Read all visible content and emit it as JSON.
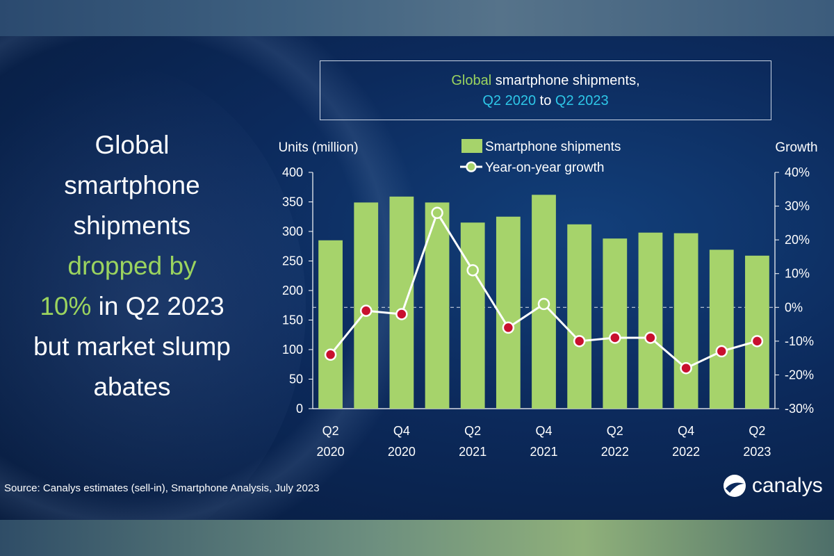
{
  "headline": {
    "line1": "Global",
    "line2": "smartphone",
    "line3": "shipments",
    "line4": "dropped by",
    "line5a": "10%",
    "line5b": " in Q2 2023",
    "line6": "but market slump",
    "line7": "abates"
  },
  "title_box": {
    "part1": "Global",
    "part2": " smartphone shipments,",
    "part3": "Q2 2020",
    "part4": " to ",
    "part5": "Q2 2023"
  },
  "colors": {
    "bar": "#a6d36b",
    "line": "#ffffff",
    "marker_fill": "#c8102e",
    "marker_positive_fill": "#a6d36b",
    "title_green": "#9bd45f",
    "title_cyan": "#2ec7e8"
  },
  "chart_data": {
    "type": "bar",
    "categories": [
      "Q2 2020",
      "Q3 2020",
      "Q4 2020",
      "Q1 2021",
      "Q2 2021",
      "Q3 2021",
      "Q4 2021",
      "Q1 2022",
      "Q2 2022",
      "Q3 2022",
      "Q4 2022",
      "Q1 2023",
      "Q2 2023"
    ],
    "x_tick_labels": [
      {
        "index": 0,
        "top": "Q2",
        "bottom": "2020"
      },
      {
        "index": 2,
        "top": "Q4",
        "bottom": "2020"
      },
      {
        "index": 4,
        "top": "Q2",
        "bottom": "2021"
      },
      {
        "index": 6,
        "top": "Q4",
        "bottom": "2021"
      },
      {
        "index": 8,
        "top": "Q2",
        "bottom": "2022"
      },
      {
        "index": 10,
        "top": "Q4",
        "bottom": "2022"
      },
      {
        "index": 12,
        "top": "Q2",
        "bottom": "2023"
      }
    ],
    "series": [
      {
        "name": "Smartphone shipments",
        "type": "bar",
        "axis": "left",
        "values": [
          285,
          349,
          359,
          349,
          315,
          325,
          362,
          312,
          288,
          298,
          297,
          269,
          259
        ]
      },
      {
        "name": "Year-on-year growth",
        "type": "line",
        "axis": "right",
        "values": [
          -14,
          -1,
          -2,
          28,
          11,
          -6,
          1,
          -10,
          -9,
          -9,
          -18,
          -13,
          -10
        ]
      }
    ],
    "ylabel": "Units (million)",
    "y2label": "Growth",
    "ylim": [
      0,
      400
    ],
    "y2lim": [
      -30,
      40
    ],
    "yticks": [
      "0",
      "50",
      "100",
      "150",
      "200",
      "250",
      "300",
      "350",
      "400"
    ],
    "y2ticks": [
      "-30%",
      "-20%",
      "-10%",
      "0%",
      "10%",
      "20%",
      "30%",
      "40%"
    ],
    "legend_position": "top-center"
  },
  "source": "Source: Canalys estimates (sell-in), Smartphone Analysis, July 2023",
  "logo_text": "canalys"
}
